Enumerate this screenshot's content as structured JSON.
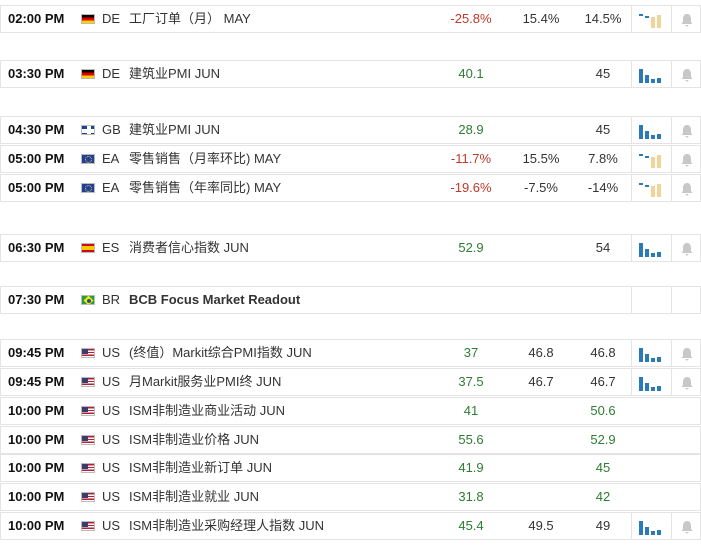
{
  "colors": {
    "negative": "#c0392b",
    "positive": "#2e7d32",
    "bar_blue": "#2a7ab8",
    "bar_tan": "#f0d49a",
    "bell_gray": "#c8c8c8"
  },
  "rows": [
    {
      "time": "02:00 PM",
      "flag": "flag-de",
      "country": "DE",
      "event": "工厂订单（月） MAY",
      "bold": false,
      "actual": "-25.8%",
      "actual_color": "red",
      "forecast": "15.4%",
      "previous": "14.5%",
      "spark": "tan-down",
      "bell": true
    },
    {
      "time": "03:30 PM",
      "flag": "flag-de",
      "country": "DE",
      "event": "建筑业PMI JUN",
      "bold": false,
      "actual": "40.1",
      "actual_color": "green",
      "forecast": "",
      "previous": "45",
      "spark": "blue",
      "bell": true
    },
    {
      "time": "04:30 PM",
      "flag": "flag-gb",
      "country": "GB",
      "event": "建筑业PMI JUN",
      "bold": false,
      "actual": "28.9",
      "actual_color": "green",
      "forecast": "",
      "previous": "45",
      "spark": "blue",
      "bell": true
    },
    {
      "time": "05:00 PM",
      "flag": "flag-ea",
      "country": "EA",
      "event": "零售销售（月率环比) MAY",
      "bold": false,
      "actual": "-11.7%",
      "actual_color": "red",
      "forecast": "15.5%",
      "previous": "7.8%",
      "spark": "tan-down",
      "bell": true
    },
    {
      "time": "05:00 PM",
      "flag": "flag-ea",
      "country": "EA",
      "event": "零售销售（年率同比) MAY",
      "bold": false,
      "actual": "-19.6%",
      "actual_color": "red",
      "forecast": "-7.5%",
      "previous": "-14%",
      "spark": "tan-down",
      "bell": true
    },
    {
      "time": "06:30 PM",
      "flag": "flag-es",
      "country": "ES",
      "event": "消费者信心指数 JUN",
      "bold": false,
      "actual": "52.9",
      "actual_color": "green",
      "forecast": "",
      "previous": "54",
      "spark": "blue",
      "bell": true
    },
    {
      "time": "07:30 PM",
      "flag": "flag-br",
      "country": "BR",
      "event": "BCB Focus Market Readout",
      "bold": true,
      "actual": "",
      "actual_color": "neutral",
      "forecast": "",
      "previous": "",
      "spark": "",
      "bell": false
    },
    {
      "time": "09:45 PM",
      "flag": "flag-us",
      "country": "US",
      "event": "(终值）Markit综合PMI指数 JUN",
      "bold": false,
      "actual": "37",
      "actual_color": "green",
      "forecast": "46.8",
      "previous": "46.8",
      "spark": "blue",
      "bell": true
    },
    {
      "time": "09:45 PM",
      "flag": "flag-us",
      "country": "US",
      "event": "月Markit服务业PMI终 JUN",
      "bold": false,
      "actual": "37.5",
      "actual_color": "green",
      "forecast": "46.7",
      "previous": "46.7",
      "spark": "blue",
      "bell": true
    },
    {
      "time": "10:00 PM",
      "flag": "flag-us",
      "country": "US",
      "event": "ISM非制造业商业活动 JUN",
      "bold": false,
      "actual": "41",
      "actual_color": "green",
      "forecast": "",
      "previous": "50.6",
      "spark": "",
      "bell": false,
      "prev_green": true
    },
    {
      "time": "10:00 PM",
      "flag": "flag-us",
      "country": "US",
      "event": "ISM非制造业价格 JUN",
      "bold": false,
      "actual": "55.6",
      "actual_color": "green",
      "forecast": "",
      "previous": "52.9",
      "spark": "",
      "bell": false,
      "prev_green": true
    },
    {
      "time": "10:00 PM",
      "flag": "flag-us",
      "country": "US",
      "event": "ISM非制造业新订单 JUN",
      "bold": false,
      "actual": "41.9",
      "actual_color": "green",
      "forecast": "",
      "previous": "45",
      "spark": "",
      "bell": false,
      "prev_green": true
    },
    {
      "time": "10:00 PM",
      "flag": "flag-us",
      "country": "US",
      "event": "ISM非制造业就业 JUN",
      "bold": false,
      "actual": "31.8",
      "actual_color": "green",
      "forecast": "",
      "previous": "42",
      "spark": "",
      "bell": false,
      "prev_green": true
    },
    {
      "time": "10:00 PM",
      "flag": "flag-us",
      "country": "US",
      "event": "ISM非制造业采购经理人指数 JUN",
      "bold": false,
      "actual": "45.4",
      "actual_color": "green",
      "forecast": "49.5",
      "previous": "49",
      "spark": "blue",
      "bell": true
    }
  ]
}
